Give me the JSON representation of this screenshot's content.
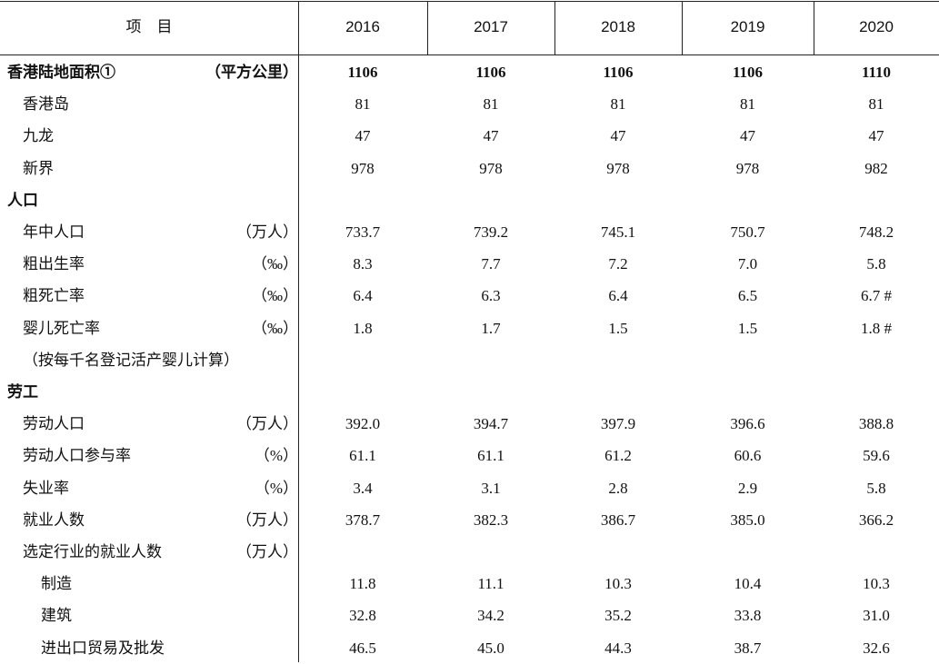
{
  "table": {
    "header": [
      "项　目",
      "2016",
      "2017",
      "2018",
      "2019",
      "2020"
    ],
    "rows": [
      {
        "label": "香港陆地面积①",
        "unit": "（平方公里）",
        "values": [
          "1106",
          "1106",
          "1106",
          "1106",
          "1110"
        ]
      },
      {
        "label": "香港岛",
        "values": [
          "81",
          "81",
          "81",
          "81",
          "81"
        ]
      },
      {
        "label": "九龙",
        "values": [
          "47",
          "47",
          "47",
          "47",
          "47"
        ]
      },
      {
        "label": "新界",
        "values": [
          "978",
          "978",
          "978",
          "978",
          "982"
        ]
      },
      {
        "label": "人口"
      },
      {
        "label": "年中人口",
        "unit": "（万人）",
        "values": [
          "733.7",
          "739.2",
          "745.1",
          "750.7",
          "748.2"
        ]
      },
      {
        "label": "粗出生率",
        "unit": "（‰）",
        "values": [
          "8.3",
          "7.7",
          "7.2",
          "7.0",
          "5.8"
        ]
      },
      {
        "label": "粗死亡率",
        "unit": "（‰）",
        "values": [
          "6.4",
          "6.3",
          "6.4",
          "6.5",
          "6.7 #"
        ]
      },
      {
        "label": "婴儿死亡率",
        "unit": "（‰）",
        "values": [
          "1.8",
          "1.7",
          "1.5",
          "1.5",
          "1.8 #"
        ]
      },
      {
        "label": "（按每千名登记活产婴儿计算）"
      },
      {
        "label": "劳工"
      },
      {
        "label": "劳动人口",
        "unit": "（万人）",
        "values": [
          "392.0",
          "394.7",
          "397.9",
          "396.6",
          "388.8"
        ]
      },
      {
        "label": "劳动人口参与率",
        "unit": "（%）",
        "values": [
          "61.1",
          "61.1",
          "61.2",
          "60.6",
          "59.6"
        ]
      },
      {
        "label": "失业率",
        "unit": "（%）",
        "values": [
          "3.4",
          "3.1",
          "2.8",
          "2.9",
          "5.8"
        ]
      },
      {
        "label": "就业人数",
        "unit": "（万人）",
        "values": [
          "378.7",
          "382.3",
          "386.7",
          "385.0",
          "366.2"
        ]
      },
      {
        "label": "选定行业的就业人数",
        "unit": "（万人）"
      },
      {
        "label": "制造",
        "values": [
          "11.8",
          "11.1",
          "10.3",
          "10.4",
          "10.3"
        ]
      },
      {
        "label": "建筑",
        "values": [
          "32.8",
          "34.2",
          "35.2",
          "33.8",
          "31.0"
        ]
      },
      {
        "label": "进出口贸易及批发",
        "values": [
          "46.5",
          "45.0",
          "44.3",
          "38.7",
          "32.6"
        ]
      }
    ]
  }
}
